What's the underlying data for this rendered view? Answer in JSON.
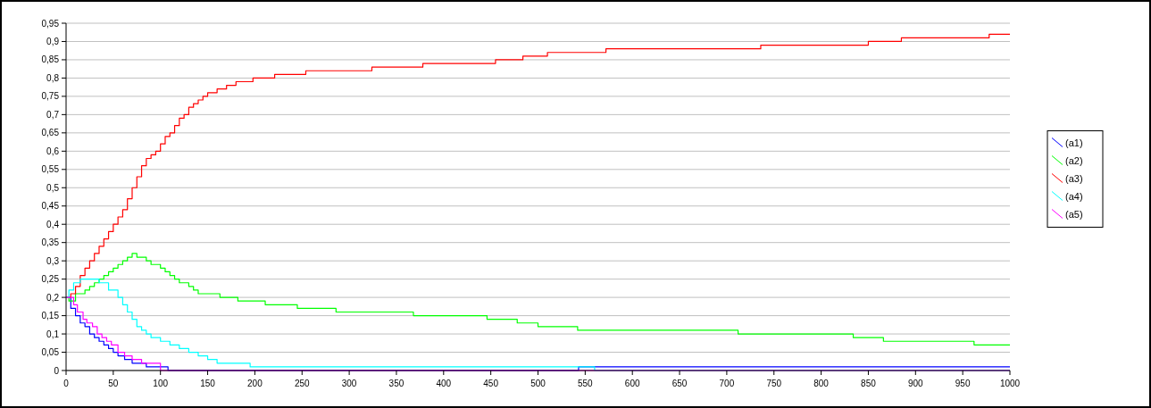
{
  "chart_data": {
    "type": "step",
    "xlim": [
      0,
      1000
    ],
    "ylim": [
      0,
      0.95
    ],
    "xticks": [
      0,
      50,
      100,
      150,
      200,
      250,
      300,
      350,
      400,
      450,
      500,
      550,
      600,
      650,
      700,
      750,
      800,
      850,
      900,
      950,
      1000
    ],
    "yticks": [
      0,
      {
        "value": 0.05,
        "label": "0,05"
      },
      {
        "value": 0.1,
        "label": "0,1"
      },
      {
        "value": 0.15,
        "label": "0,15"
      },
      {
        "value": 0.2,
        "label": "0,2"
      },
      {
        "value": 0.25,
        "label": "0,25"
      },
      {
        "value": 0.3,
        "label": "0,3"
      },
      {
        "value": 0.35,
        "label": "0,35"
      },
      {
        "value": 0.4,
        "label": "0,4"
      },
      {
        "value": 0.45,
        "label": "0,45"
      },
      {
        "value": 0.5,
        "label": "0,5"
      },
      {
        "value": 0.55,
        "label": "0,55"
      },
      {
        "value": 0.6,
        "label": "0,6"
      },
      {
        "value": 0.65,
        "label": "0,65"
      },
      {
        "value": 0.7,
        "label": "0,7"
      },
      {
        "value": 0.75,
        "label": "0,75"
      },
      {
        "value": 0.8,
        "label": "0,8"
      },
      {
        "value": 0.85,
        "label": "0,85"
      },
      {
        "value": 0.9,
        "label": "0,9"
      },
      {
        "value": 0.95,
        "label": "0,95"
      }
    ],
    "grid": "y",
    "legend": "right",
    "line_style": "solid",
    "marker": "none",
    "series": [
      {
        "name": "(a1)",
        "color": "#0000ff",
        "x": [
          0,
          5,
          10,
          15,
          20,
          25,
          30,
          35,
          40,
          45,
          50,
          55,
          62,
          70,
          85,
          108,
          543,
          1000
        ],
        "values": [
          0.2,
          0.17,
          0.15,
          0.13,
          0.12,
          0.1,
          0.09,
          0.08,
          0.07,
          0.06,
          0.05,
          0.04,
          0.03,
          0.02,
          0.01,
          0,
          0.01,
          0.01
        ]
      },
      {
        "name": "(a2)",
        "color": "#00ff00",
        "x": [
          0,
          3,
          10,
          20,
          25,
          30,
          35,
          40,
          45,
          50,
          55,
          60,
          65,
          70,
          75,
          85,
          90,
          100,
          105,
          110,
          115,
          120,
          130,
          135,
          140,
          150,
          163,
          182,
          211,
          245,
          286,
          368,
          446,
          478,
          500,
          542,
          712,
          834,
          866,
          962,
          1000
        ],
        "values": [
          0.2,
          0.19,
          0.21,
          0.22,
          0.23,
          0.24,
          0.25,
          0.26,
          0.27,
          0.28,
          0.29,
          0.3,
          0.31,
          0.32,
          0.31,
          0.3,
          0.29,
          0.28,
          0.27,
          0.26,
          0.25,
          0.24,
          0.23,
          0.22,
          0.21,
          0.21,
          0.2,
          0.19,
          0.18,
          0.17,
          0.16,
          0.15,
          0.14,
          0.13,
          0.12,
          0.11,
          0.1,
          0.09,
          0.08,
          0.07,
          0.07
        ]
      },
      {
        "name": "(a3)",
        "color": "#ff0000",
        "x": [
          0,
          5,
          10,
          15,
          20,
          25,
          30,
          35,
          40,
          45,
          50,
          55,
          60,
          65,
          70,
          75,
          80,
          85,
          90,
          95,
          100,
          105,
          110,
          115,
          120,
          125,
          130,
          135,
          140,
          145,
          150,
          160,
          170,
          180,
          198,
          221,
          254,
          324,
          378,
          455,
          484,
          510,
          572,
          736,
          850,
          885,
          978,
          1000
        ],
        "values": [
          0.2,
          0.21,
          0.23,
          0.26,
          0.28,
          0.3,
          0.32,
          0.34,
          0.36,
          0.38,
          0.4,
          0.42,
          0.44,
          0.47,
          0.5,
          0.53,
          0.56,
          0.58,
          0.59,
          0.6,
          0.62,
          0.64,
          0.65,
          0.67,
          0.69,
          0.7,
          0.72,
          0.73,
          0.74,
          0.75,
          0.76,
          0.77,
          0.78,
          0.79,
          0.8,
          0.81,
          0.82,
          0.83,
          0.84,
          0.85,
          0.86,
          0.87,
          0.88,
          0.89,
          0.9,
          0.91,
          0.92,
          0.92
        ]
      },
      {
        "name": "(a4)",
        "color": "#00ffff",
        "x": [
          0,
          3,
          8,
          15,
          35,
          45,
          55,
          60,
          65,
          70,
          75,
          80,
          85,
          90,
          100,
          110,
          120,
          130,
          140,
          150,
          160,
          195,
          560,
          1000
        ],
        "values": [
          0.2,
          0.22,
          0.24,
          0.25,
          0.24,
          0.22,
          0.2,
          0.18,
          0.16,
          0.14,
          0.12,
          0.11,
          0.1,
          0.09,
          0.08,
          0.07,
          0.06,
          0.05,
          0.04,
          0.03,
          0.02,
          0.01,
          0,
          0
        ]
      },
      {
        "name": "(a5)",
        "color": "#ff00ff",
        "x": [
          0,
          8,
          12,
          18,
          22,
          28,
          33,
          38,
          43,
          48,
          55,
          62,
          70,
          80,
          100,
          1000
        ],
        "values": [
          0.2,
          0.18,
          0.16,
          0.14,
          0.13,
          0.12,
          0.1,
          0.09,
          0.08,
          0.07,
          0.05,
          0.04,
          0.03,
          0.02,
          0,
          0
        ]
      }
    ]
  }
}
